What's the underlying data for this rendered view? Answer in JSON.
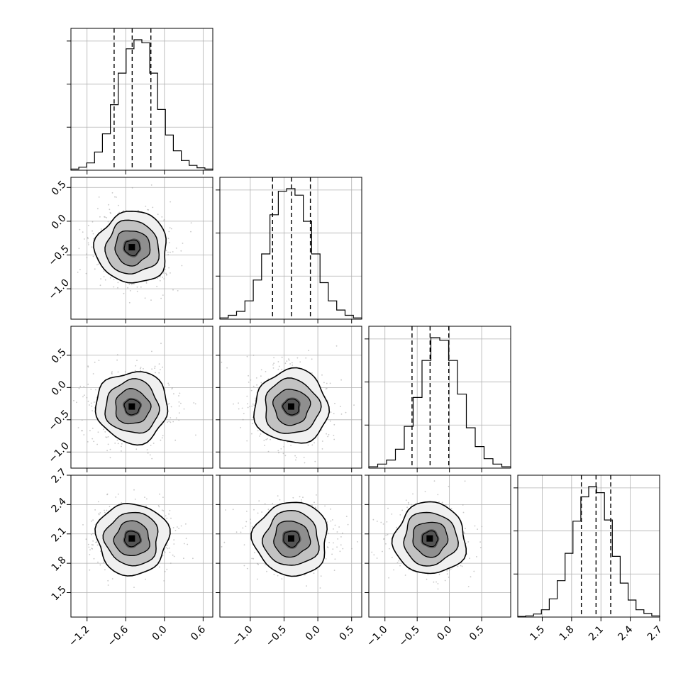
{
  "chart_data": {
    "type": "corner",
    "grid": true,
    "colors": {
      "line": "#000000",
      "grid": "#b0b0b0",
      "scatter": "#9a9a9a",
      "background": "#ffffff"
    },
    "parameters": [
      {
        "range": [
          -1.45,
          0.75
        ],
        "ticks": [
          -1.2,
          -0.6,
          0.0,
          0.6
        ],
        "tick_labels": [
          "−1.2",
          "−0.6",
          "0.0",
          "0.6"
        ],
        "quantiles": [
          -0.78,
          -0.5,
          -0.21
        ],
        "hist_counts": [
          2,
          5,
          12,
          30,
          60,
          108,
          160,
          200,
          215,
          210,
          160,
          100,
          58,
          32,
          16,
          8,
          4,
          2
        ]
      },
      {
        "range": [
          -1.45,
          0.65
        ],
        "ticks": [
          -1.0,
          -0.5,
          0.0,
          0.5
        ],
        "tick_labels": [
          "−1.0",
          "−0.5",
          "0.0",
          "0.5"
        ],
        "quantiles": [
          -0.67,
          -0.39,
          -0.11
        ],
        "hist_counts": [
          2,
          6,
          12,
          28,
          60,
          100,
          160,
          196,
          200,
          190,
          150,
          100,
          56,
          28,
          14,
          6,
          2
        ]
      },
      {
        "range": [
          -1.25,
          0.95
        ],
        "ticks": [
          -1.0,
          -0.5,
          0.0,
          0.5
        ],
        "tick_labels": [
          "−1.0",
          "−0.5",
          "0.0",
          "0.5"
        ],
        "quantiles": [
          -0.58,
          -0.3,
          -0.01
        ],
        "hist_counts": [
          2,
          6,
          12,
          28,
          62,
          105,
          160,
          194,
          190,
          160,
          110,
          60,
          32,
          14,
          6,
          2
        ]
      },
      {
        "range": [
          1.25,
          2.7
        ],
        "ticks": [
          1.5,
          1.8,
          2.1,
          2.4,
          2.7
        ],
        "tick_labels": [
          "1.5",
          "1.8",
          "2.1",
          "2.4",
          "2.7"
        ],
        "quantiles": [
          1.9,
          2.05,
          2.2
        ],
        "hist_counts": [
          1,
          2,
          5,
          12,
          30,
          60,
          105,
          158,
          198,
          215,
          205,
          160,
          100,
          56,
          28,
          12,
          6,
          2
        ]
      }
    ]
  }
}
